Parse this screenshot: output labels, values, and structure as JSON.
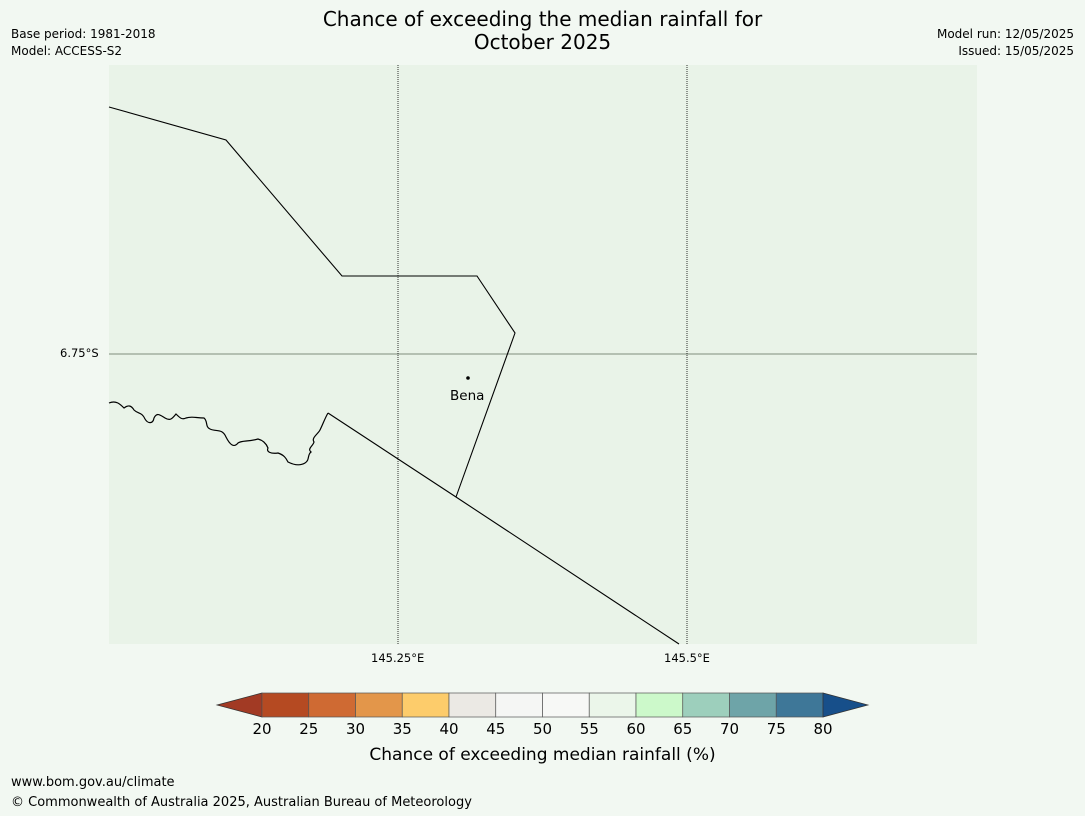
{
  "title": {
    "line1": "Chance of exceeding the median rainfall for",
    "line2": "October 2025"
  },
  "meta_left": {
    "base_period": "Base period: 1981-2018",
    "model": "Model: ACCESS-S2"
  },
  "meta_right": {
    "model_run": "Model run: 12/05/2025",
    "issued": "Issued: 15/05/2025"
  },
  "map": {
    "background_color": "#e9f3e8",
    "latitude_label": "6.75°S",
    "longitude_labels": [
      "145.25°E",
      "145.5°E"
    ],
    "place": {
      "name": "Bena"
    }
  },
  "colorbar": {
    "label": "Chance of exceeding median rainfall (%)",
    "ticks": [
      "20",
      "25",
      "30",
      "35",
      "40",
      "45",
      "50",
      "55",
      "60",
      "65",
      "70",
      "75",
      "80"
    ],
    "colors": [
      "#a23a24",
      "#b54a22",
      "#cf6a33",
      "#e3964a",
      "#fdcc6b",
      "#ebe9e4",
      "#f5f6f4",
      "#f7f8f6",
      "#ebf6ea",
      "#ccf9ca",
      "#9dcfbc",
      "#6ea4a8",
      "#3e7798",
      "#174f8a"
    ]
  },
  "footer": {
    "url": "www.bom.gov.au/climate",
    "copyright": "© Commonwealth of Australia 2025, Australian Bureau of Meteorology"
  }
}
